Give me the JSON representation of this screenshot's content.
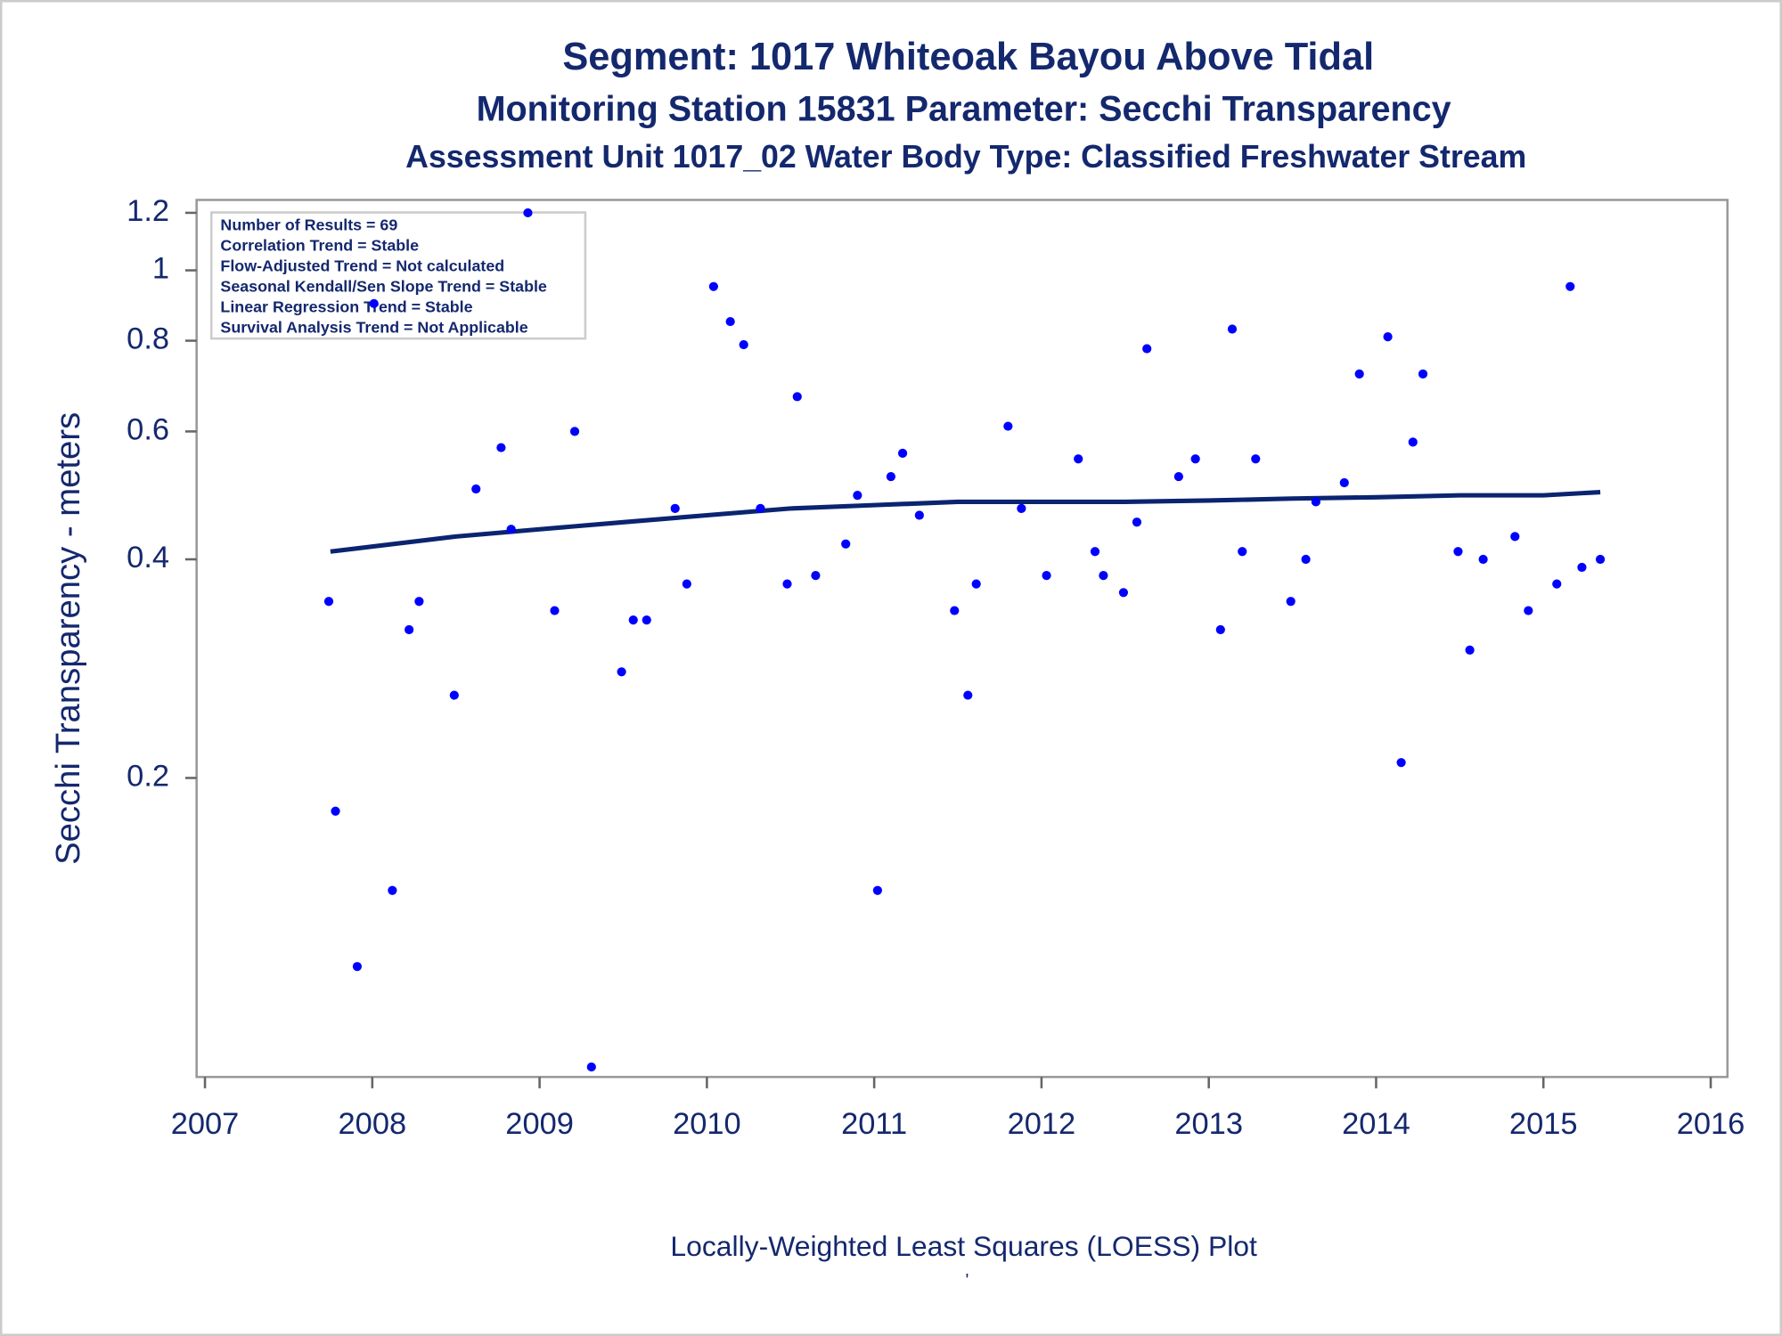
{
  "chart_data": {
    "type": "scatter",
    "title": "Segment: 1017  Whiteoak Bayou Above Tidal",
    "subtitle": "Monitoring Station 15831 Parameter: Secchi Transparency",
    "subtitle2": "Assessment Unit 1017_02   Water Body Type: Classified Freshwater Stream",
    "y_label": "Secchi Transparency - meters",
    "x_label": "Locally-Weighted Least Squares (LOESS) Plot",
    "footnote": "'",
    "stats": [
      "Number of Results = 69",
      "Correlation Trend = Stable",
      "Flow-Adjusted Trend = Not calculated",
      "Seasonal Kendall/Sen Slope Trend = Stable",
      "Linear Regression Trend = Stable",
      "Survival Analysis Trend = Not Applicable"
    ],
    "log_y": true,
    "color": "#0000ff",
    "x": [
      2007.74,
      2007.78,
      2007.91,
      2008.01,
      2008.12,
      2008.22,
      2008.28,
      2008.49,
      2008.62,
      2008.77,
      2008.83,
      2008.93,
      2009.09,
      2009.21,
      2009.31,
      2009.49,
      2009.56,
      2009.64,
      2009.81,
      2009.88,
      2010.04,
      2010.14,
      2010.22,
      2010.32,
      2010.48,
      2010.54,
      2010.65,
      2010.83,
      2010.9,
      2011.02,
      2011.1,
      2011.17,
      2011.27,
      2011.48,
      2011.56,
      2011.61,
      2011.8,
      2011.88,
      2012.03,
      2012.22,
      2012.32,
      2012.37,
      2012.49,
      2012.57,
      2012.63,
      2012.82,
      2012.92,
      2013.07,
      2013.14,
      2013.2,
      2013.28,
      2013.49,
      2013.58,
      2013.64,
      2013.81,
      2013.9,
      2014.07,
      2014.15,
      2014.22,
      2014.28,
      2014.49,
      2014.56,
      2014.64,
      2014.83,
      2014.91,
      2015.08,
      2015.16,
      2015.23,
      2015.34
    ],
    "values": [
      0.35,
      0.18,
      0.11,
      0.9,
      0.14,
      0.32,
      0.35,
      0.26,
      0.5,
      0.57,
      0.44,
      1.2,
      0.34,
      0.6,
      0.08,
      0.28,
      0.33,
      0.33,
      0.47,
      0.37,
      0.95,
      0.85,
      0.79,
      0.47,
      0.37,
      0.67,
      0.38,
      0.42,
      0.49,
      0.14,
      0.52,
      0.56,
      0.46,
      0.34,
      0.26,
      0.37,
      0.61,
      0.47,
      0.38,
      0.55,
      0.41,
      0.38,
      0.36,
      0.45,
      0.78,
      0.52,
      0.55,
      0.32,
      0.83,
      0.41,
      0.55,
      0.35,
      0.4,
      0.48,
      0.51,
      0.72,
      0.81,
      0.21,
      0.58,
      0.72,
      0.41,
      0.3,
      0.4,
      0.43,
      0.34,
      0.37,
      0.95,
      0.39,
      0.4
    ],
    "trend": {
      "color": "#0a2470",
      "x": [
        2007.75,
        2008.5,
        2009.0,
        2009.5,
        2010.0,
        2010.5,
        2011.0,
        2011.5,
        2012.0,
        2012.5,
        2013.0,
        2013.5,
        2014.0,
        2014.5,
        2015.0,
        2015.34
      ],
      "values": [
        0.41,
        0.43,
        0.44,
        0.45,
        0.46,
        0.47,
        0.475,
        0.48,
        0.48,
        0.48,
        0.482,
        0.485,
        0.487,
        0.49,
        0.49,
        0.495
      ]
    },
    "xlim": [
      2006.95,
      2016.1
    ],
    "xticks": [
      2007,
      2008,
      2009,
      2010,
      2011,
      2012,
      2013,
      2014,
      2015,
      2016
    ],
    "ylim": [
      0.0775,
      1.25
    ],
    "yticks": [
      0.2,
      0.4,
      0.6,
      0.8,
      1,
      1.2
    ]
  }
}
